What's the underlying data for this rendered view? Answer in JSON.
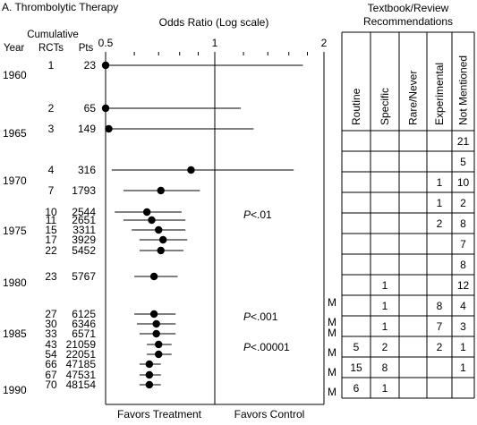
{
  "figure_title": "A. Thrombolytic Therapy",
  "chart_data": {
    "type": "cumulative-forest-plot",
    "title": "Odds Ratio (Log scale)",
    "x_scale": "log",
    "x_ticks": [
      "0.5",
      "1",
      "2"
    ],
    "x_tick_values": [
      0.5,
      1,
      2
    ],
    "xlim": [
      0.5,
      2
    ],
    "reference_line": 1,
    "column_headers": {
      "year": "Year",
      "cumulative": "Cumulative",
      "rcts": "RCTs",
      "pts": "Pts"
    },
    "year_labels": [
      "1960",
      "1965",
      "1970",
      "1975",
      "1980",
      "1985",
      "1990"
    ],
    "favors_left": "Favors Treatment",
    "favors_right": "Favors Control",
    "studies": [
      {
        "rcts": "1",
        "pts": "23",
        "or": 0.5,
        "lo": 0.5,
        "hi": 1.75
      },
      {
        "rcts": "2",
        "pts": "65",
        "or": 0.5,
        "lo": 0.5,
        "hi": 1.18
      },
      {
        "rcts": "3",
        "pts": "149",
        "or": 0.51,
        "lo": 0.5,
        "hi": 1.28
      },
      {
        "rcts": "4",
        "pts": "316",
        "or": 0.86,
        "lo": 0.52,
        "hi": 1.65
      },
      {
        "rcts": "7",
        "pts": "1793",
        "or": 0.71,
        "lo": 0.56,
        "hi": 0.91
      },
      {
        "rcts": "10",
        "pts": "2544",
        "or": 0.65,
        "lo": 0.53,
        "hi": 0.81
      },
      {
        "rcts": "11",
        "pts": "2651",
        "or": 0.67,
        "lo": 0.56,
        "hi": 0.83
      },
      {
        "rcts": "15",
        "pts": "3311",
        "or": 0.7,
        "lo": 0.59,
        "hi": 0.83
      },
      {
        "rcts": "17",
        "pts": "3929",
        "or": 0.72,
        "lo": 0.62,
        "hi": 0.84
      },
      {
        "rcts": "22",
        "pts": "5452",
        "or": 0.71,
        "lo": 0.62,
        "hi": 0.82
      },
      {
        "rcts": "23",
        "pts": "5767",
        "or": 0.68,
        "lo": 0.6,
        "hi": 0.79
      },
      {
        "rcts": "27",
        "pts": "6125",
        "or": 0.68,
        "lo": 0.6,
        "hi": 0.78
      },
      {
        "rcts": "30",
        "pts": "6346",
        "or": 0.69,
        "lo": 0.61,
        "hi": 0.78
      },
      {
        "rcts": "33",
        "pts": "6571",
        "or": 0.69,
        "lo": 0.62,
        "hi": 0.78
      },
      {
        "rcts": "43",
        "pts": "21059",
        "or": 0.7,
        "lo": 0.65,
        "hi": 0.76
      },
      {
        "rcts": "54",
        "pts": "22051",
        "or": 0.7,
        "lo": 0.65,
        "hi": 0.76
      },
      {
        "rcts": "66",
        "pts": "47185",
        "or": 0.66,
        "lo": 0.62,
        "hi": 0.71
      },
      {
        "rcts": "67",
        "pts": "47531",
        "or": 0.66,
        "lo": 0.62,
        "hi": 0.71
      },
      {
        "rcts": "70",
        "pts": "48154",
        "or": 0.66,
        "lo": 0.62,
        "hi": 0.71
      }
    ],
    "p_values": [
      "P<.01",
      "P<.001",
      "P<.00001"
    ],
    "m_marks": [
      "M",
      "M",
      "M",
      "M",
      "M",
      "M",
      "M"
    ],
    "recommendations": {
      "title_line1": "Textbook/Review",
      "title_line2": "Recommendations",
      "columns": [
        "Routine",
        "Specific",
        "Rare/Never",
        "Experimental",
        "Not Mentioned"
      ],
      "rows": [
        [
          "",
          "",
          "",
          "",
          "21"
        ],
        [
          "",
          "",
          "",
          "",
          "5"
        ],
        [
          "",
          "",
          "",
          "1",
          "10"
        ],
        [
          "",
          "",
          "",
          "1",
          "2"
        ],
        [
          "",
          "",
          "",
          "2",
          "8"
        ],
        [
          "",
          "",
          "",
          "",
          "7"
        ],
        [
          "",
          "",
          "",
          "",
          "8"
        ],
        [
          "",
          "1",
          "",
          "",
          "12"
        ],
        [
          "",
          "1",
          "",
          "8",
          "4"
        ],
        [
          "",
          "1",
          "",
          "7",
          "3"
        ],
        [
          "5",
          "2",
          "",
          "2",
          "1"
        ],
        [
          "15",
          "8",
          "",
          "",
          "1"
        ],
        [
          "6",
          "1",
          "",
          "",
          ""
        ]
      ]
    }
  }
}
